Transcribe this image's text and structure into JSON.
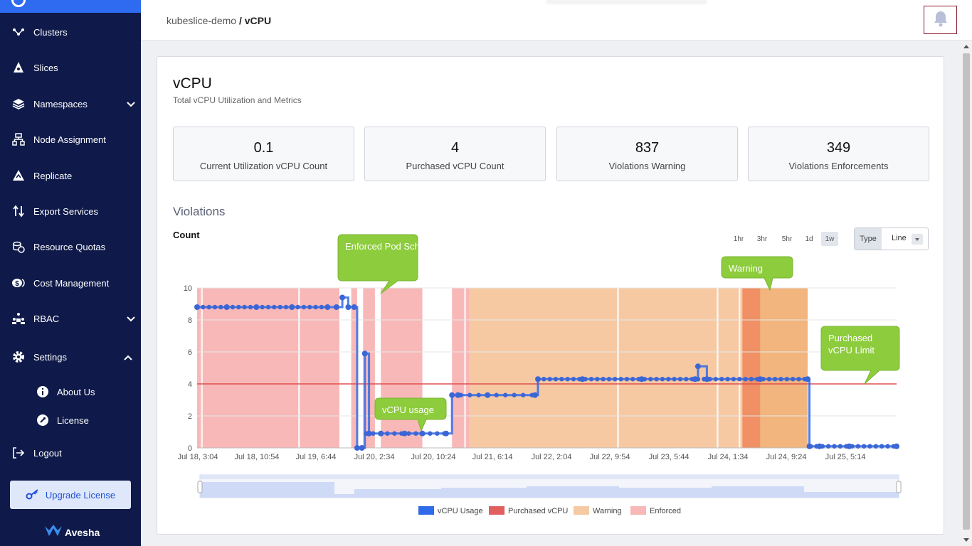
{
  "sidebar": {
    "items": [
      {
        "label": "Clusters",
        "icon": "clusters-icon"
      },
      {
        "label": "Slices",
        "icon": "slices-icon"
      },
      {
        "label": "Namespaces",
        "icon": "layers-icon"
      },
      {
        "label": "Node Assignment",
        "icon": "sitemap-icon"
      },
      {
        "label": "Replicate",
        "icon": "replicate-icon"
      },
      {
        "label": "Export Services",
        "icon": "arrows-icon"
      },
      {
        "label": "Resource Quotas",
        "icon": "coins-icon"
      },
      {
        "label": "Cost Management",
        "icon": "cost-icon"
      },
      {
        "label": "RBAC",
        "icon": "users-icon"
      },
      {
        "label": "Settings",
        "icon": "gear-icon"
      },
      {
        "label": "Logout",
        "icon": "logout-icon"
      }
    ],
    "settings_sub": [
      {
        "label": "About Us",
        "icon": "info-icon"
      },
      {
        "label": "License",
        "icon": "license-icon"
      }
    ],
    "upgrade_label": "Upgrade License",
    "logo_text": "Avesha"
  },
  "breadcrumb": {
    "root": "kubeslice-demo",
    "separator": " / ",
    "current": "vCPU"
  },
  "header": {
    "title": "vCPU",
    "subtitle": "Total vCPU Utilization and Metrics"
  },
  "stats": [
    {
      "value": "0.1",
      "label": "Current Utilization vCPU Count"
    },
    {
      "value": "4",
      "label": "Purchased vCPU Count"
    },
    {
      "value": "837",
      "label": "Violations Warning"
    },
    {
      "value": "349",
      "label": "Violations Enforcements"
    }
  ],
  "section_title": "Violations",
  "count_label": "Count",
  "ranges": [
    "1hr",
    "3hr",
    "5hr",
    "1d",
    "1w"
  ],
  "selected_range": "1w",
  "type_selector": {
    "label": "Type",
    "value": "Line"
  },
  "chart_data": {
    "type": "line",
    "ylabel": "Count",
    "ylim": [
      0,
      10
    ],
    "yticks": [
      0,
      2,
      4,
      6,
      8,
      10
    ],
    "xticks": [
      "Jul 18, 3:04",
      "Jul 18, 10:54",
      "Jul 19, 6:44",
      "Jul 20, 2:34",
      "Jul 20, 10:24",
      "Jul 21, 6:14",
      "Jul 22, 2:04",
      "Jul 22, 9:54",
      "Jul 23, 5:44",
      "Jul 24, 1:34",
      "Jul 24, 9:24",
      "Jul 25, 5:14"
    ],
    "grid": true,
    "legend_position": "bottom",
    "purchased_limit": 4,
    "series": [
      {
        "name": "vCPU Usage",
        "color": "#2f6ae8",
        "x": [
          0.0,
          0.5,
          1.0,
          1.6,
          2.2,
          2.35,
          2.45,
          2.55,
          2.65,
          2.7,
          2.78,
          2.83,
          2.9,
          3.1,
          3.5,
          3.8,
          4.2,
          4.3,
          4.4,
          4.9,
          5.7,
          5.75,
          6.5,
          7.5,
          8.4,
          8.45,
          8.6,
          9.5,
          10.3,
          10.33,
          10.5,
          11.0,
          11.8
        ],
        "values": [
          8.8,
          8.8,
          8.8,
          8.8,
          8.8,
          8.8,
          9.4,
          8.8,
          8.8,
          0.0,
          0.0,
          5.9,
          0.9,
          0.9,
          0.9,
          0.9,
          0.9,
          3.3,
          3.3,
          3.3,
          3.3,
          4.3,
          4.3,
          4.3,
          4.3,
          5.1,
          4.3,
          4.3,
          4.3,
          0.1,
          0.1,
          0.1,
          0.1
        ]
      },
      {
        "name": "Purchased vCPU",
        "color": "#e06060"
      },
      {
        "name": "Warning",
        "color": "#f6c9a3"
      },
      {
        "name": "Enforced",
        "color": "#f8b8b8"
      }
    ],
    "enforced_bands": [
      [
        0.0,
        2.4
      ],
      [
        2.6,
        2.7
      ],
      [
        2.8,
        3.0
      ],
      [
        3.1,
        3.8
      ],
      [
        4.3,
        4.6
      ]
    ],
    "warning_bands": [
      [
        4.6,
        10.3
      ]
    ],
    "warning_dark_bands": [
      [
        9.2,
        9.5
      ],
      [
        9.5,
        10.3
      ]
    ],
    "annotations": [
      {
        "text": "Enforced Pod Scheduling"
      },
      {
        "text": "vCPU usage"
      },
      {
        "text": "Warning"
      },
      {
        "text": "Purchased vCPU Limit"
      }
    ]
  }
}
